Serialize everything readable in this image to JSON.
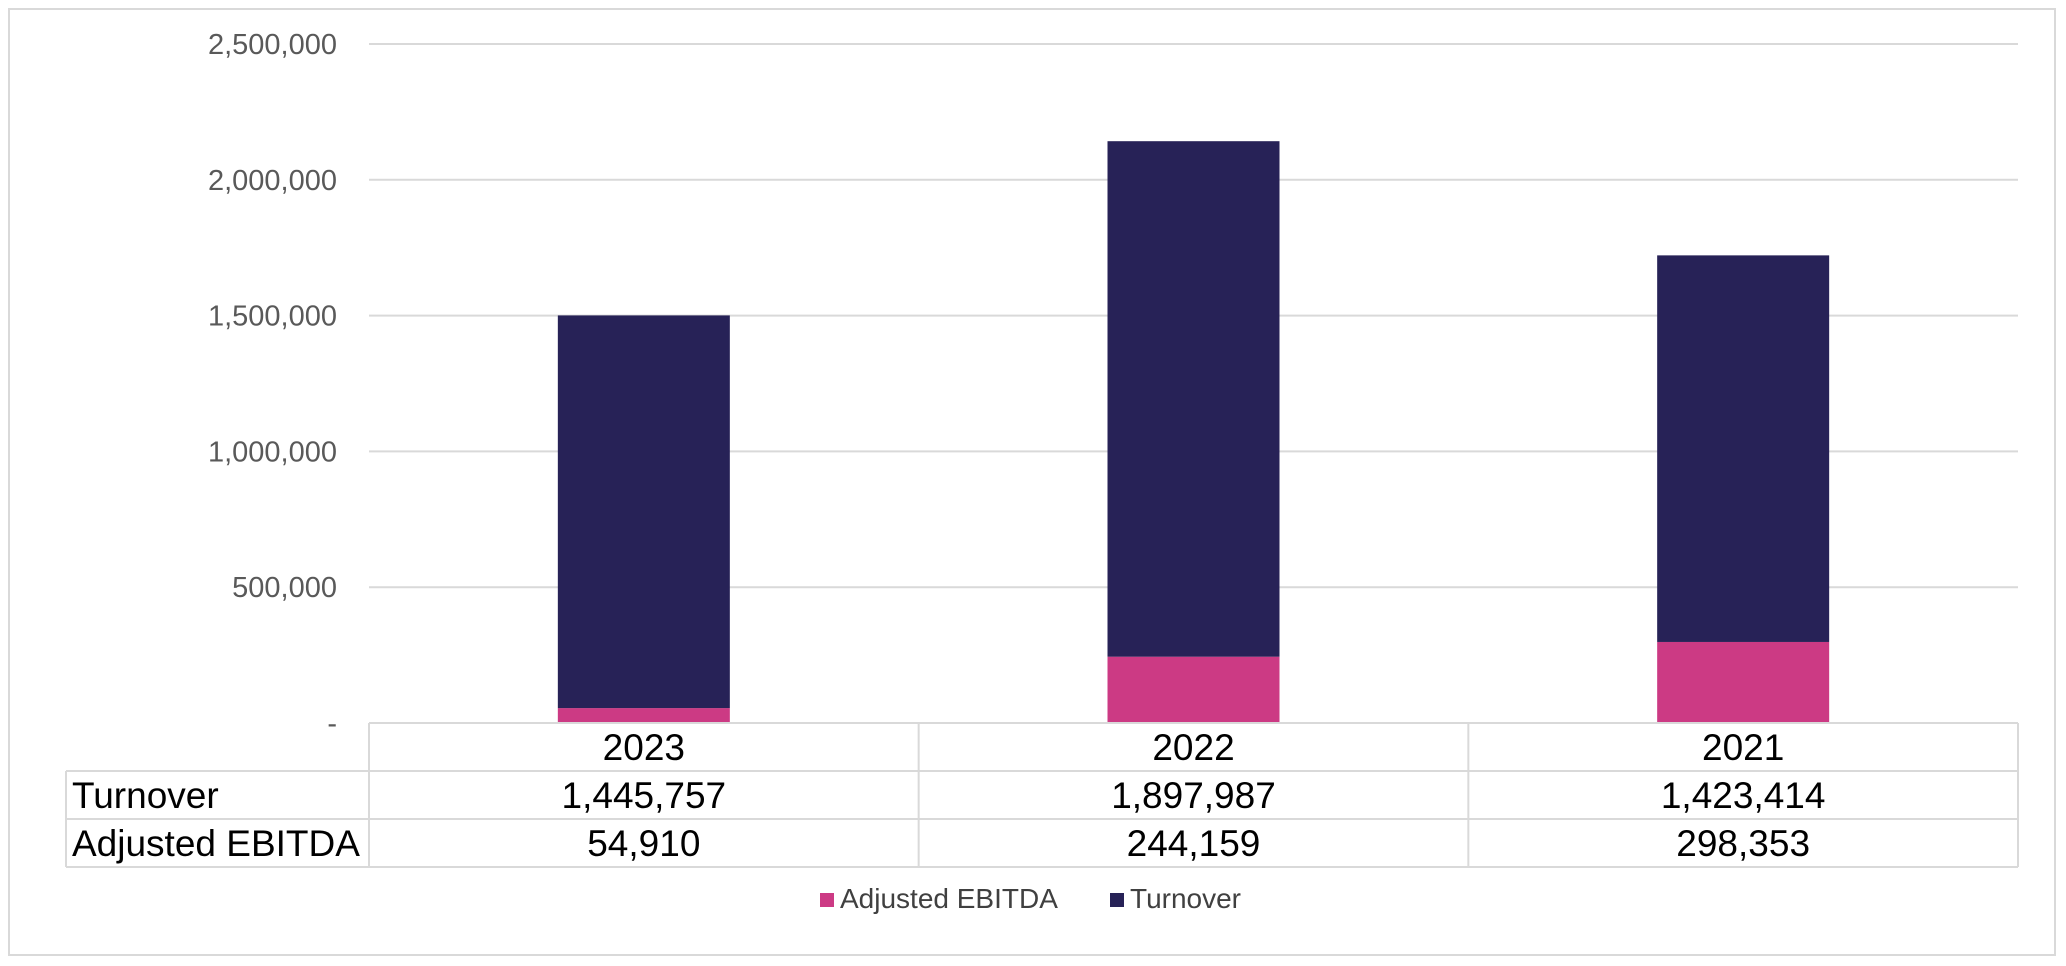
{
  "chart_data": {
    "type": "bar",
    "stacked": true,
    "categories": [
      "2023",
      "2022",
      "2021"
    ],
    "series": [
      {
        "name": "Adjusted EBITDA",
        "values": [
          54910,
          244159,
          298353
        ],
        "color": "#cc3a84"
      },
      {
        "name": "Turnover",
        "values": [
          1445757,
          1897987,
          1423414
        ],
        "color": "#272257"
      }
    ],
    "ylim": [
      0,
      2500000
    ],
    "y_ticks": [
      {
        "value": 0,
        "label": "-"
      },
      {
        "value": 500000,
        "label": "500,000"
      },
      {
        "value": 1000000,
        "label": "1,000,000"
      },
      {
        "value": 1500000,
        "label": "1,500,000"
      },
      {
        "value": 2000000,
        "label": "2,000,000"
      },
      {
        "value": 2500000,
        "label": "2,500,000"
      }
    ],
    "grid": true,
    "legend": "bottom",
    "data_table": {
      "rows": [
        {
          "label": "Turnover",
          "cells": [
            "1,445,757",
            "1,897,987",
            "1,423,414"
          ]
        },
        {
          "label": "Adjusted EBITDA",
          "cells": [
            "54,910",
            "244,159",
            "298,353"
          ]
        }
      ]
    },
    "title": "",
    "xlabel": "",
    "ylabel": ""
  }
}
